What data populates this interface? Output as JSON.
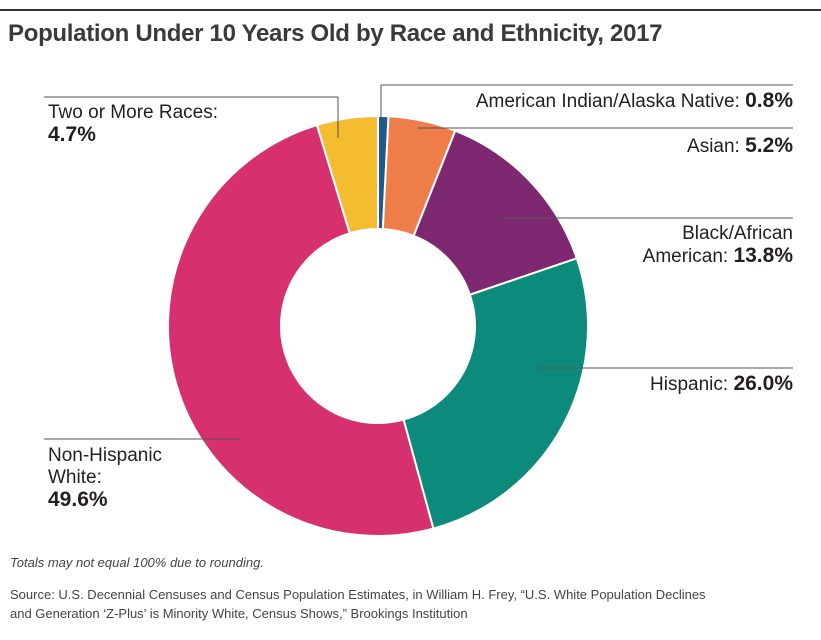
{
  "title": "Population Under 10 Years Old by Race and Ethnicity, 2017",
  "footnote": "Totals may not equal 100% due to rounding.",
  "source_line1": "Source:  U.S. Decennial Censuses and Census Population Estimates, in William H. Frey, “U.S. White Population Declines",
  "source_line2": "and Generation ‘Z-Plus’ is Minority White, Census Shows,” Brookings Institution",
  "chart_data": {
    "type": "pie",
    "donut": true,
    "slices": [
      {
        "label": "American Indian/Alaska Native:",
        "value": 0.8,
        "display": "0.8%",
        "color": "#1f5a8c"
      },
      {
        "label": "Asian:",
        "value": 5.2,
        "display": "5.2%",
        "color": "#ef7d4a"
      },
      {
        "label_line1": "Black/African",
        "label": "American:",
        "value": 13.8,
        "display": "13.8%",
        "color": "#7e2872"
      },
      {
        "label": "Hispanic:",
        "value": 26.0,
        "display": "26.0%",
        "color": "#0c8a7b"
      },
      {
        "label_line1": "Non-Hispanic",
        "label": "White:",
        "value": 49.6,
        "display": "49.6%",
        "color": "#d6306f"
      },
      {
        "label": "Two or More Races:",
        "value": 4.7,
        "display": "4.7%",
        "color": "#f4bc2f"
      }
    ]
  }
}
